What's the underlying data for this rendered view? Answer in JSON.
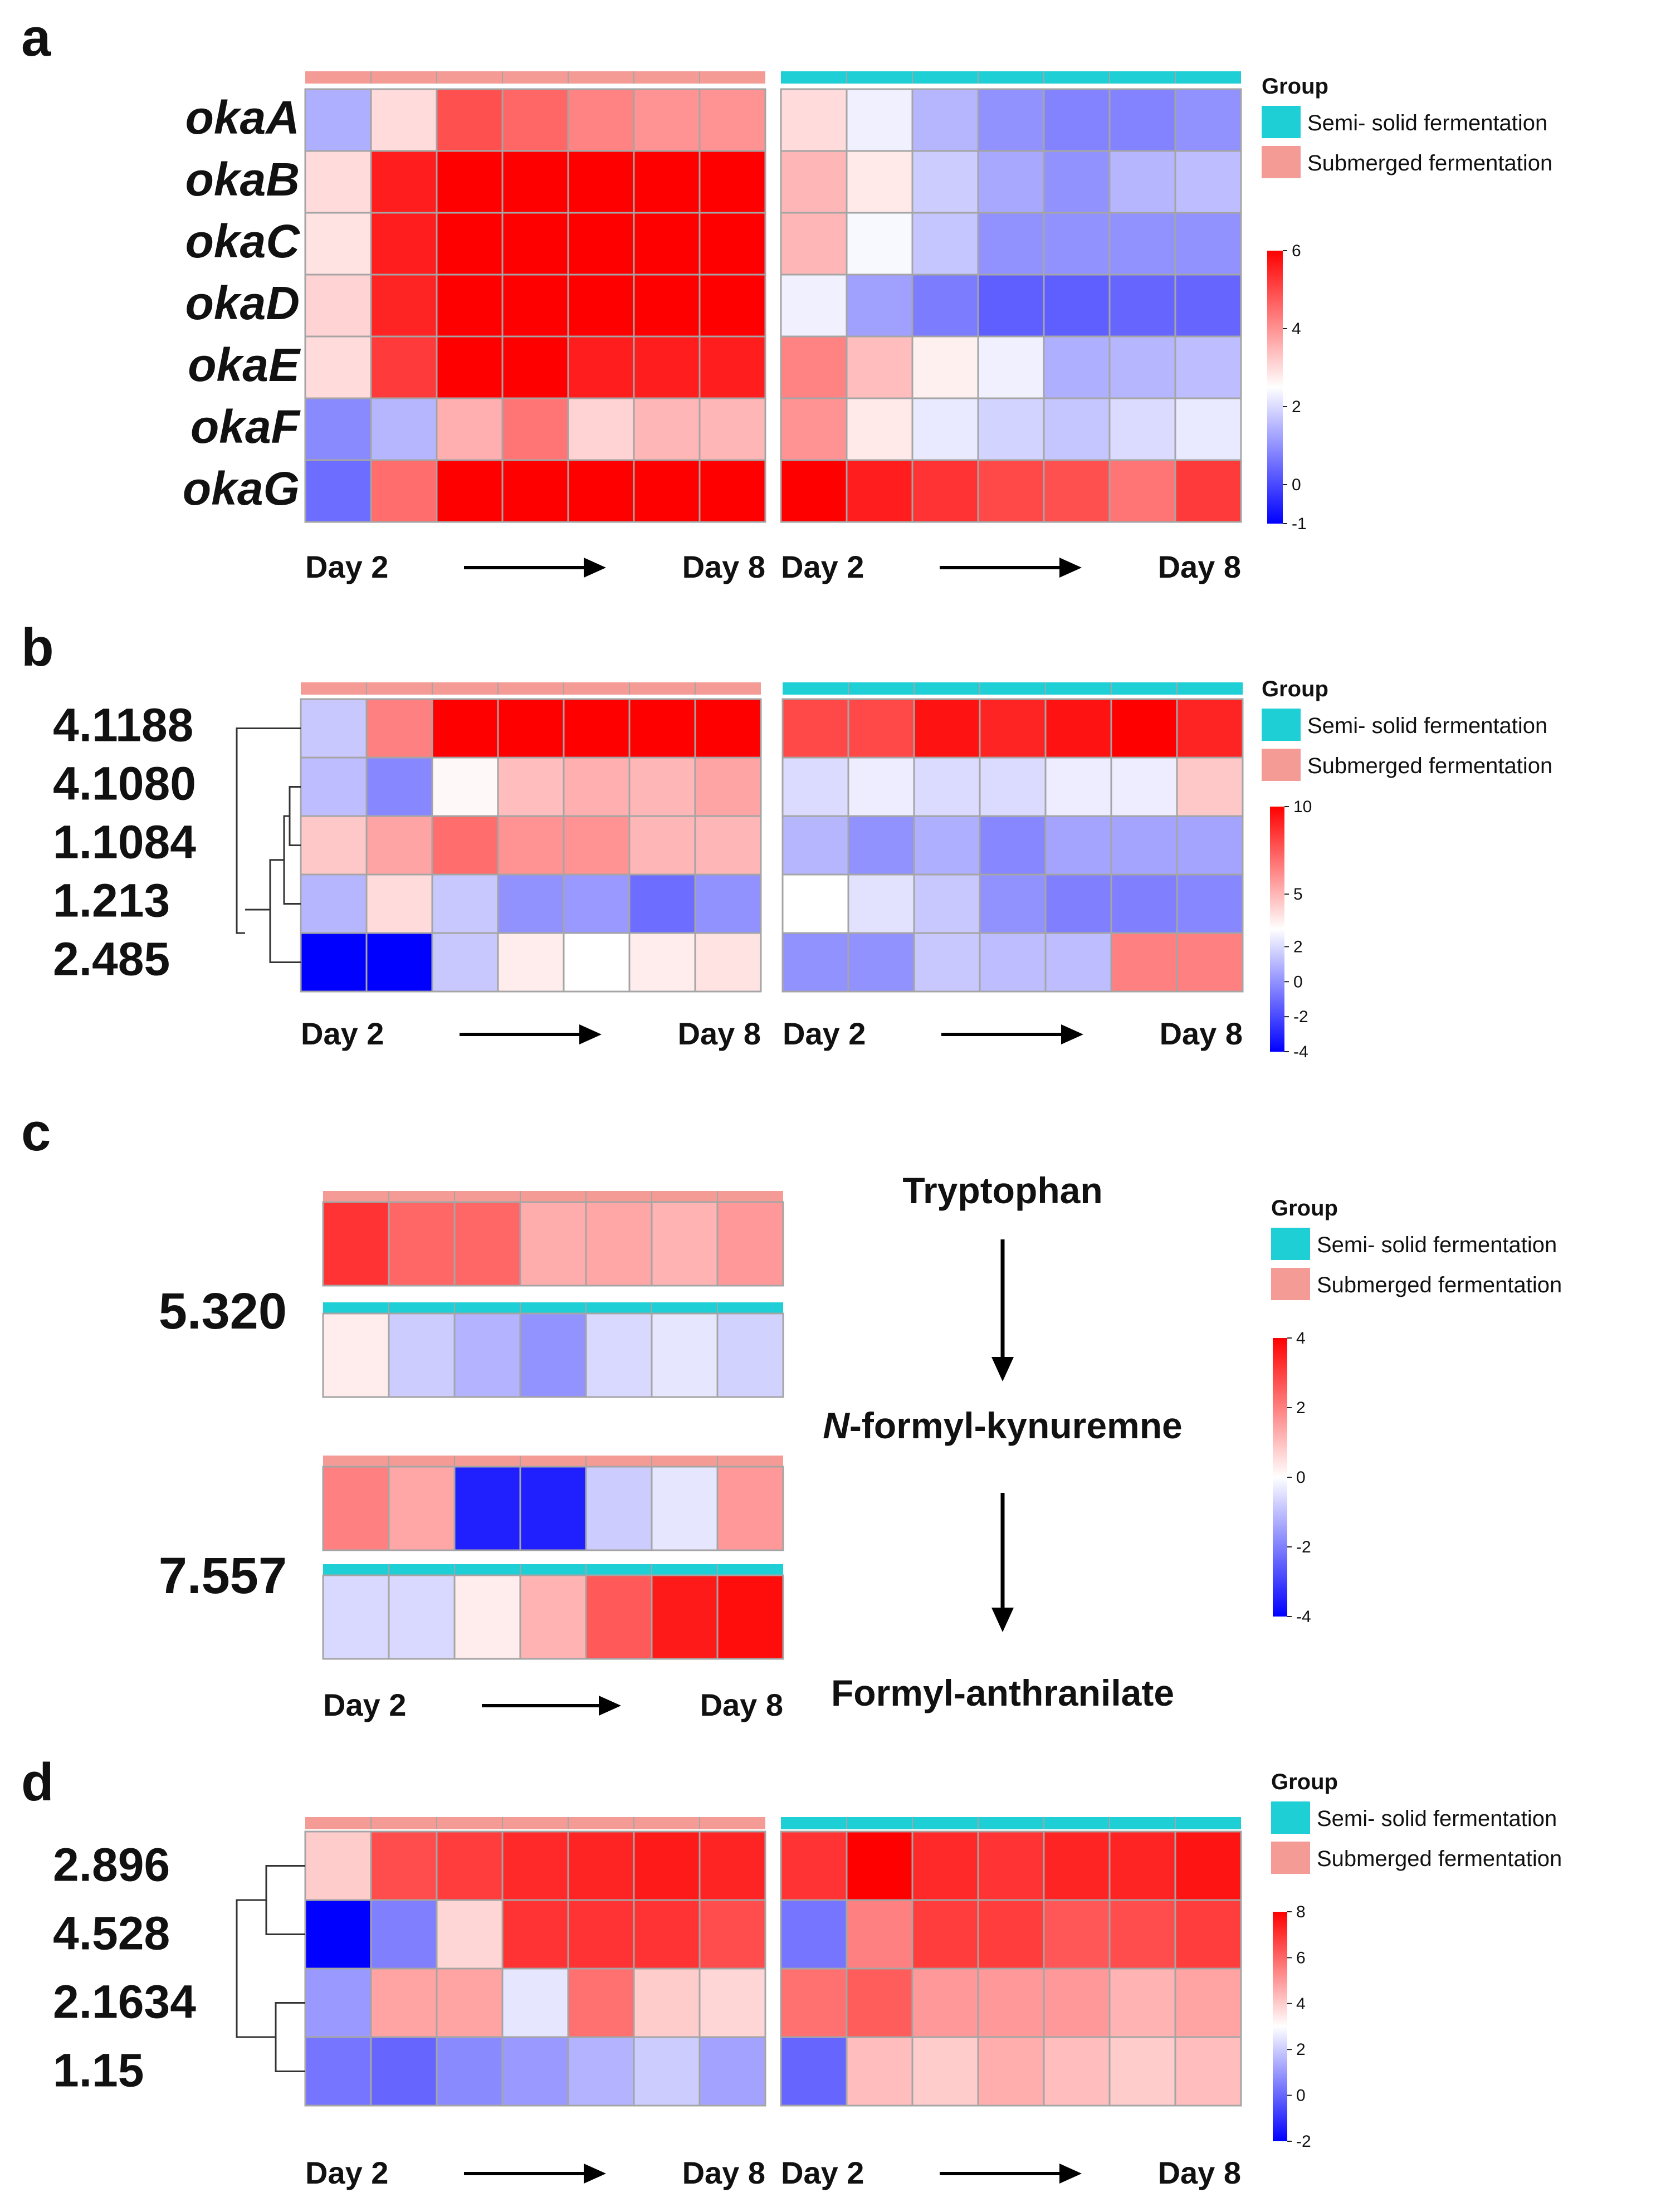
{
  "chart_data": [
    {
      "type": "heatmap",
      "panel": "a",
      "rows": [
        "okaA",
        "okaB",
        "okaC",
        "okaD",
        "okaE",
        "okaF",
        "okaG"
      ],
      "groups": [
        {
          "name": "Submerged fermentation",
          "x_start": "Day 2",
          "x_end": "Day 8",
          "values": [
            [
              1.4,
              3.0,
              4.9,
              4.6,
              4.2,
              4.0,
              4.0
            ],
            [
              3.0,
              5.6,
              6.0,
              6.0,
              6.0,
              6.0,
              6.0
            ],
            [
              2.9,
              5.6,
              6.0,
              6.0,
              6.0,
              6.0,
              6.0
            ],
            [
              3.1,
              5.5,
              6.0,
              6.0,
              6.0,
              6.0,
              6.0
            ],
            [
              3.0,
              5.2,
              6.0,
              6.0,
              5.6,
              5.6,
              5.6
            ],
            [
              0.9,
              1.5,
              3.6,
              4.4,
              3.1,
              3.5,
              3.5
            ],
            [
              0.5,
              4.5,
              6.0,
              6.0,
              6.0,
              6.0,
              6.0
            ]
          ]
        },
        {
          "name": "Semi- solid fermentation",
          "x_start": "Day 2",
          "x_end": "Day 8",
          "values": [
            [
              3.0,
              2.3,
              1.5,
              1.0,
              0.8,
              0.8,
              1.0
            ],
            [
              3.5,
              2.8,
              1.8,
              1.3,
              1.0,
              1.5,
              1.6
            ],
            [
              3.5,
              2.4,
              1.7,
              1.0,
              1.0,
              1.0,
              1.0
            ],
            [
              2.3,
              1.2,
              0.7,
              0.3,
              0.3,
              0.4,
              0.4
            ],
            [
              4.2,
              3.4,
              2.7,
              2.3,
              1.4,
              1.5,
              1.6
            ],
            [
              4.0,
              2.8,
              2.2,
              1.9,
              1.7,
              2.0,
              2.2
            ],
            [
              6.0,
              5.6,
              5.3,
              5.0,
              4.9,
              4.4,
              5.2
            ]
          ]
        }
      ],
      "scale": {
        "min": -1,
        "max": 6,
        "ticks": [
          6,
          4,
          2,
          0,
          -1
        ]
      },
      "legend": {
        "title": "Group",
        "entries": [
          "Semi- solid fermentation",
          "Submerged fermentation"
        ]
      }
    },
    {
      "type": "heatmap",
      "panel": "b",
      "rows": [
        "4.1188",
        "4.1080",
        "1.1084",
        "1.213",
        "2.485"
      ],
      "groups": [
        {
          "name": "Submerged fermentation",
          "x_start": "Day 2",
          "x_end": "Day 8",
          "values": [
            [
              1.5,
              6.5,
              10,
              10,
              10,
              10,
              10
            ],
            [
              1.2,
              -0.3,
              3.2,
              4.8,
              5.2,
              5.0,
              5.5
            ],
            [
              4.5,
              5.5,
              7.0,
              6.0,
              6.0,
              5.0,
              5.0
            ],
            [
              1.0,
              4.0,
              1.5,
              0.0,
              0.2,
              -1.0,
              0.0
            ],
            [
              -4,
              -4,
              1.5,
              3.5,
              3.0,
              3.5,
              3.8
            ]
          ]
        },
        {
          "name": "Semi- solid fermentation",
          "x_start": "Day 2",
          "x_end": "Day 8",
          "values": [
            [
              8.0,
              8.0,
              9.5,
              9.0,
              9.5,
              10,
              9.0
            ],
            [
              2.0,
              2.5,
              2.0,
              2.0,
              2.5,
              2.5,
              4.5
            ],
            [
              1.0,
              0.0,
              0.8,
              -0.3,
              0.5,
              0.5,
              0.5
            ],
            [
              3.0,
              2.2,
              1.5,
              0.0,
              -0.5,
              -0.5,
              -0.3
            ],
            [
              0.0,
              0.0,
              1.5,
              1.2,
              1.2,
              6.5,
              6.5
            ]
          ]
        }
      ],
      "scale": {
        "min": -4,
        "max": 10,
        "ticks": [
          10,
          5,
          2,
          0,
          -2,
          -4
        ]
      },
      "legend": {
        "title": "Group",
        "entries": [
          "Semi- solid fermentation",
          "Submerged fermentation"
        ]
      }
    },
    {
      "type": "heatmap",
      "panel": "c",
      "rows": [
        "5.320",
        "7.557"
      ],
      "blocks": [
        {
          "row": "5.320",
          "group": "Submerged fermentation",
          "values": [
            3.2,
            2.4,
            2.4,
            1.3,
            1.4,
            1.2,
            1.6
          ]
        },
        {
          "row": "5.320",
          "group": "Semi- solid fermentation",
          "values": [
            0.3,
            -0.8,
            -1.2,
            -1.7,
            -0.6,
            -0.4,
            -0.7
          ]
        },
        {
          "row": "7.557",
          "group": "Submerged fermentation",
          "values": [
            2.0,
            1.4,
            -3.5,
            -3.5,
            -0.8,
            -0.4,
            1.6
          ]
        },
        {
          "row": "7.557",
          "group": "Semi- solid fermentation",
          "values": [
            -0.6,
            -0.6,
            0.3,
            1.2,
            2.6,
            3.6,
            3.8
          ]
        }
      ],
      "x_start": "Day 2",
      "x_end": "Day 8",
      "pathway": [
        "Tryptophan",
        "N-formyl-kynuremne",
        "Formyl-anthranilate"
      ],
      "scale": {
        "min": -4,
        "max": 4,
        "ticks": [
          4,
          2,
          0,
          -2,
          -4
        ]
      },
      "legend": {
        "title": "Group",
        "entries": [
          "Semi- solid fermentation",
          "Submerged fermentation"
        ]
      }
    },
    {
      "type": "heatmap",
      "panel": "d",
      "rows": [
        "2.896",
        "4.528",
        "2.1634",
        "1.15"
      ],
      "groups": [
        {
          "name": "Submerged fermentation",
          "x_start": "Day 2",
          "x_end": "Day 8",
          "values": [
            [
              4.0,
              6.5,
              6.8,
              7.2,
              7.3,
              7.5,
              7.3
            ],
            [
              -2.0,
              0.5,
              3.8,
              7.0,
              7.0,
              7.0,
              6.5
            ],
            [
              1.0,
              4.8,
              4.8,
              2.5,
              5.8,
              4.0,
              3.8
            ],
            [
              0.3,
              0.0,
              0.7,
              1.0,
              1.5,
              2.0,
              1.2
            ]
          ]
        },
        {
          "name": "Semi- solid fermentation",
          "x_start": "Day 2",
          "x_end": "Day 8",
          "values": [
            [
              7.0,
              8.0,
              7.2,
              7.0,
              7.3,
              7.3,
              7.6
            ],
            [
              0.3,
              5.5,
              6.8,
              6.8,
              6.3,
              6.5,
              6.8
            ],
            [
              5.8,
              6.2,
              5.0,
              5.0,
              5.0,
              4.5,
              4.8
            ],
            [
              0.0,
              4.3,
              4.0,
              4.6,
              4.3,
              4.0,
              4.3
            ]
          ]
        }
      ],
      "scale": {
        "min": -2,
        "max": 8,
        "ticks": [
          8,
          6,
          4,
          2,
          0,
          -2
        ]
      },
      "legend": {
        "title": "Group",
        "entries": [
          "Semi- solid fermentation",
          "Submerged fermentation"
        ]
      }
    }
  ],
  "colors": {
    "submerged": "#f49b96",
    "semi_solid": "#1ecfd6",
    "high": "#ff0000",
    "mid": "#ffffff",
    "low": "#0000ff",
    "grid": "#a5a5a5",
    "text": "#111111"
  }
}
